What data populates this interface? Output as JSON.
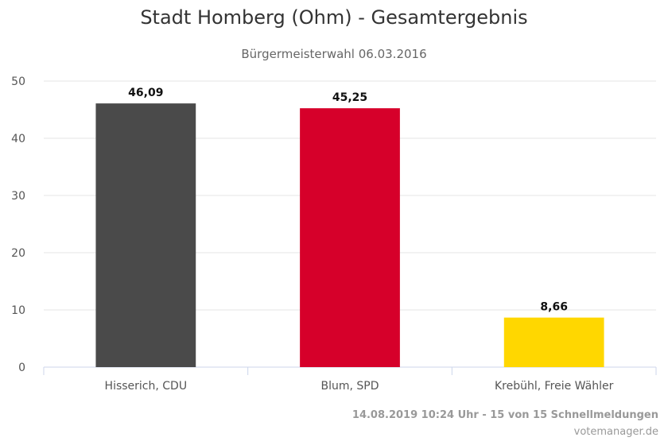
{
  "chart_data": {
    "type": "bar",
    "title": "Stadt Homberg (Ohm) - Gesamtergebnis",
    "subtitle": "Bürgermeisterwahl 06.03.2016",
    "categories": [
      "Hisserich, CDU",
      "Blum, SPD",
      "Krebühl, Freie Wähler"
    ],
    "values": [
      46.09,
      45.25,
      8.66
    ],
    "value_labels": [
      "46,09",
      "45,25",
      "8,66"
    ],
    "colors": [
      "#4a4a4a",
      "#d6002a",
      "#ffd700"
    ],
    "ylim": [
      0,
      50
    ],
    "yticks": [
      0,
      10,
      20,
      30,
      40,
      50
    ],
    "grid": true,
    "xlabel": "",
    "ylabel": ""
  },
  "footer": {
    "line1": "14.08.2019 10:24 Uhr - 15 von 15 Schnellmeldungen",
    "line2": "votemanager.de"
  }
}
